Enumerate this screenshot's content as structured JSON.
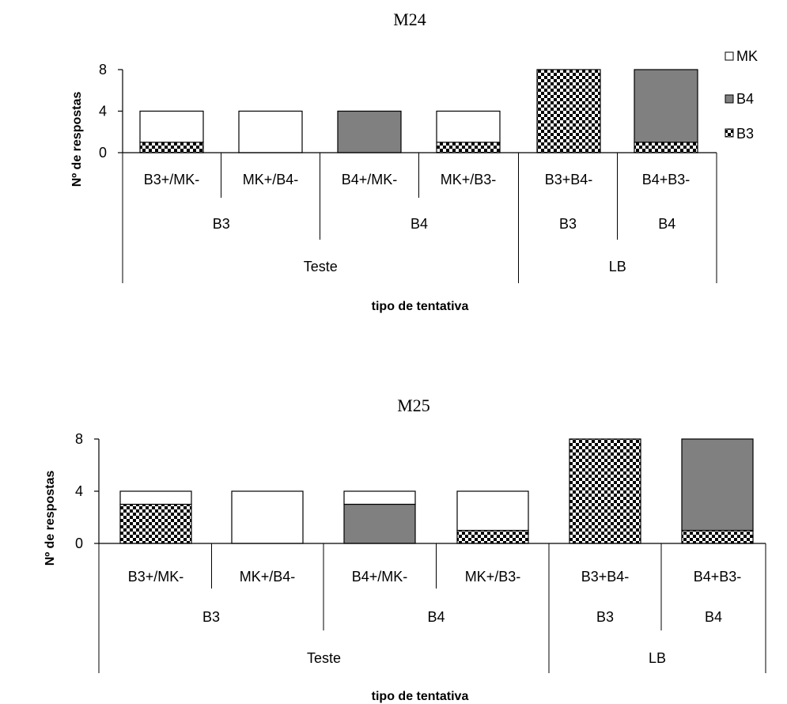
{
  "colors": {
    "mk": "#ffffff",
    "b4": "#808080",
    "b3_dark": "#000000",
    "b3_light": "#ffffff",
    "axis": "#000000"
  },
  "legend": {
    "entries": [
      {
        "key": "mk",
        "label": "MK"
      },
      {
        "key": "b4",
        "label": "B4"
      },
      {
        "key": "b3",
        "label": "B3"
      }
    ]
  },
  "chart_data": [
    {
      "type": "bar",
      "stacked": true,
      "title": "M24",
      "ylabel": "Nº de respostas",
      "xlabel": "tipo de tentativa",
      "ylim": [
        0,
        8
      ],
      "yticks": [
        0,
        4,
        8
      ],
      "grid": false,
      "legend_position": "right",
      "categories": [
        "B3+/MK-",
        "MK+/B4-",
        "B4+/MK-",
        "MK+/B3-",
        "B3+B4-",
        "B4+B3-"
      ],
      "group_level_2": [
        {
          "label": "B3",
          "span": 2
        },
        {
          "label": "B4",
          "span": 2
        },
        {
          "label": "B3",
          "span": 1
        },
        {
          "label": "B4",
          "span": 1
        }
      ],
      "group_level_3": [
        {
          "label": "Teste",
          "span": 4
        },
        {
          "label": "LB",
          "span": 2
        }
      ],
      "series": [
        {
          "name": "B3",
          "key": "b3",
          "values": [
            1,
            0,
            0,
            1,
            8,
            1
          ]
        },
        {
          "name": "B4",
          "key": "b4",
          "values": [
            0,
            0,
            4,
            0,
            0,
            7
          ]
        },
        {
          "name": "MK",
          "key": "mk",
          "values": [
            3,
            4,
            0,
            3,
            0,
            0
          ]
        }
      ]
    },
    {
      "type": "bar",
      "stacked": true,
      "title": "M25",
      "ylabel": "Nº de respostas",
      "xlabel": "tipo de tentativa",
      "ylim": [
        0,
        8
      ],
      "yticks": [
        0,
        4,
        8
      ],
      "grid": false,
      "categories": [
        "B3+/MK-",
        "MK+/B4-",
        "B4+/MK-",
        "MK+/B3-",
        "B3+B4-",
        "B4+B3-"
      ],
      "group_level_2": [
        {
          "label": "B3",
          "span": 2
        },
        {
          "label": "B4",
          "span": 2
        },
        {
          "label": "B3",
          "span": 1
        },
        {
          "label": "B4",
          "span": 1
        }
      ],
      "group_level_3": [
        {
          "label": "Teste",
          "span": 4
        },
        {
          "label": "LB",
          "span": 2
        }
      ],
      "series": [
        {
          "name": "B3",
          "key": "b3",
          "values": [
            3,
            0,
            0,
            1,
            8,
            1
          ]
        },
        {
          "name": "B4",
          "key": "b4",
          "values": [
            0,
            0,
            3,
            0,
            0,
            7
          ]
        },
        {
          "name": "MK",
          "key": "mk",
          "values": [
            1,
            4,
            1,
            3,
            0,
            0
          ]
        }
      ]
    }
  ]
}
